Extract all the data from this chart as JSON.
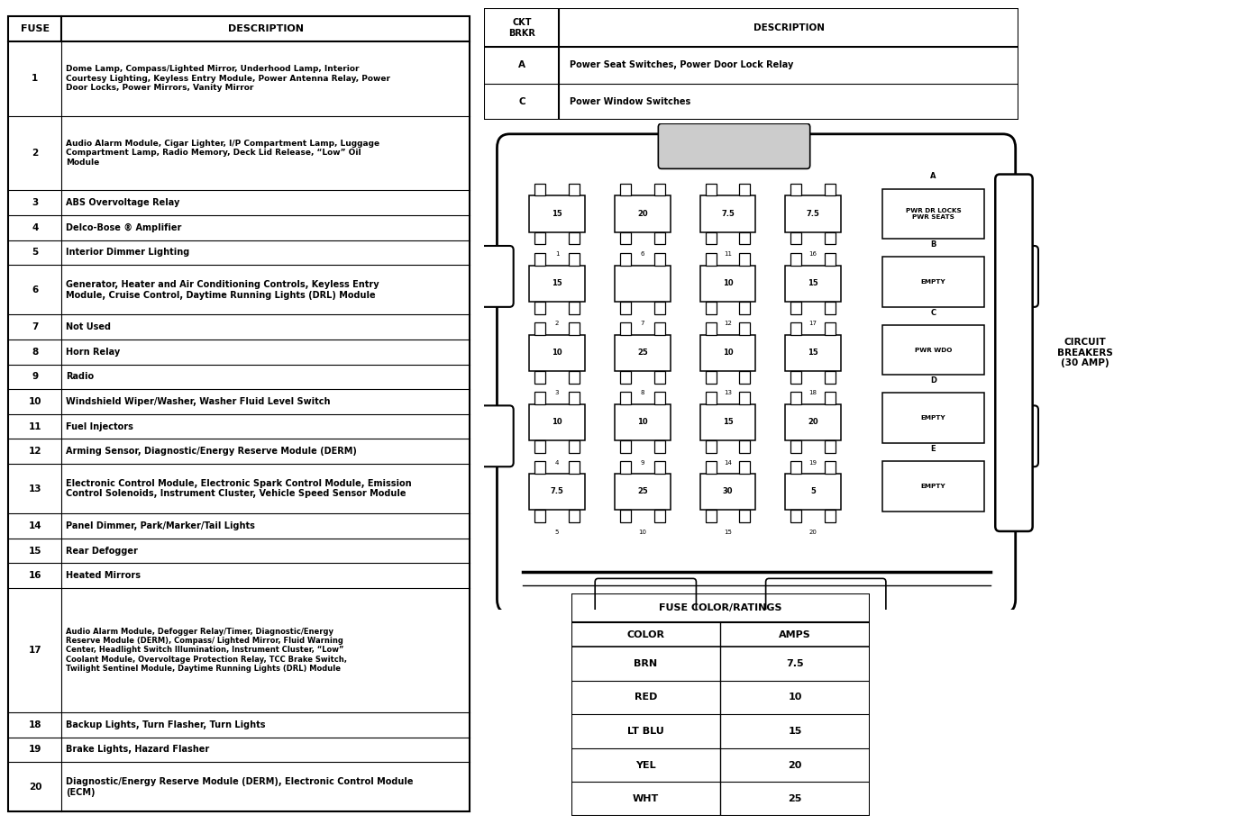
{
  "fuse_table": {
    "headers": [
      "FUSE",
      "DESCRIPTION"
    ],
    "rows": [
      [
        "1",
        "Dome Lamp, Compass/Lighted Mirror, Underhood Lamp, Interior\nCourtesy Lighting, Keyless Entry Module, Power Antenna Relay, Power\nDoor Locks, Power Mirrors, Vanity Mirror"
      ],
      [
        "2",
        "Audio Alarm Module, Cigar Lighter, I/P Compartment Lamp, Luggage\nCompartment Lamp, Radio Memory, Deck Lid Release, “Low” Oil\nModule"
      ],
      [
        "3",
        "ABS Overvoltage Relay"
      ],
      [
        "4",
        "Delco-Bose ® Amplifier"
      ],
      [
        "5",
        "Interior Dimmer Lighting"
      ],
      [
        "6",
        "Generator, Heater and Air Conditioning Controls, Keyless Entry\nModule, Cruise Control, Daytime Running Lights (DRL) Module"
      ],
      [
        "7",
        "Not Used"
      ],
      [
        "8",
        "Horn Relay"
      ],
      [
        "9",
        "Radio"
      ],
      [
        "10",
        "Windshield Wiper/Washer, Washer Fluid Level Switch"
      ],
      [
        "11",
        "Fuel Injectors"
      ],
      [
        "12",
        "Arming Sensor, Diagnostic/Energy Reserve Module (DERM)"
      ],
      [
        "13",
        "Electronic Control Module, Electronic Spark Control Module, Emission\nControl Solenoids, Instrument Cluster, Vehicle Speed Sensor Module"
      ],
      [
        "14",
        "Panel Dimmer, Park/Marker/Tail Lights"
      ],
      [
        "15",
        "Rear Defogger"
      ],
      [
        "16",
        "Heated Mirrors"
      ],
      [
        "17",
        "Audio Alarm Module, Defogger Relay/Timer, Diagnostic/Energy\nReserve Module (DERM), Compass/ Lighted Mirror, Fluid Warning\nCenter, Headlight Switch Illumination, Instrument Cluster, “Low”\nCoolant Module, Overvoltage Protection Relay, TCC Brake Switch,\nTwilight Sentinel Module, Daytime Running Lights (DRL) Module"
      ],
      [
        "18",
        "Backup Lights, Turn Flasher, Turn Lights"
      ],
      [
        "19",
        "Brake Lights, Hazard Flasher"
      ],
      [
        "20",
        "Diagnostic/Energy Reserve Module (DERM), Electronic Control Module\n(ECM)"
      ]
    ]
  },
  "ckt_table": {
    "headers": [
      "CKT\nBRKR",
      "DESCRIPTION"
    ],
    "rows": [
      [
        "A",
        "Power Seat Switches, Power Door Lock Relay"
      ],
      [
        "C",
        "Power Window Switches"
      ]
    ]
  },
  "fuse_color_table": {
    "title": "FUSE COLOR/RATINGS",
    "headers": [
      "COLOR",
      "AMPS"
    ],
    "rows": [
      [
        "BRN",
        "7.5"
      ],
      [
        "RED",
        "10"
      ],
      [
        "LT BLU",
        "15"
      ],
      [
        "YEL",
        "20"
      ],
      [
        "WHT",
        "25"
      ]
    ]
  },
  "fuse_box": {
    "rows": [
      [
        {
          "val": "15",
          "num": "1"
        },
        {
          "val": "20",
          "num": "6"
        },
        {
          "val": "7.5",
          "num": "11"
        },
        {
          "val": "7.5",
          "num": "16"
        }
      ],
      [
        {
          "val": "15",
          "num": "2"
        },
        {
          "val": "",
          "num": "7"
        },
        {
          "val": "10",
          "num": "12"
        },
        {
          "val": "15",
          "num": "17"
        }
      ],
      [
        {
          "val": "10",
          "num": "3"
        },
        {
          "val": "25",
          "num": "8"
        },
        {
          "val": "10",
          "num": "13"
        },
        {
          "val": "15",
          "num": "18"
        }
      ],
      [
        {
          "val": "10",
          "num": "4"
        },
        {
          "val": "10",
          "num": "9"
        },
        {
          "val": "15",
          "num": "14"
        },
        {
          "val": "20",
          "num": "19"
        }
      ],
      [
        {
          "val": "7.5",
          "num": "5"
        },
        {
          "val": "25",
          "num": "10"
        },
        {
          "val": "30",
          "num": "15"
        },
        {
          "val": "5",
          "num": "20"
        }
      ]
    ],
    "circuit_breakers": [
      {
        "label": "A",
        "text": "PWR DR LOCKS\nPWR SEATS"
      },
      {
        "label": "B",
        "text": "EMPTY"
      },
      {
        "label": "C",
        "text": "PWR WDO"
      },
      {
        "label": "D",
        "text": "EMPTY"
      },
      {
        "label": "E",
        "text": "EMPTY"
      }
    ]
  },
  "bg_color": "#ffffff",
  "text_color": "#000000",
  "circuit_breakers_label": "CIRCUIT\nBREAKERS\n(30 AMP)"
}
